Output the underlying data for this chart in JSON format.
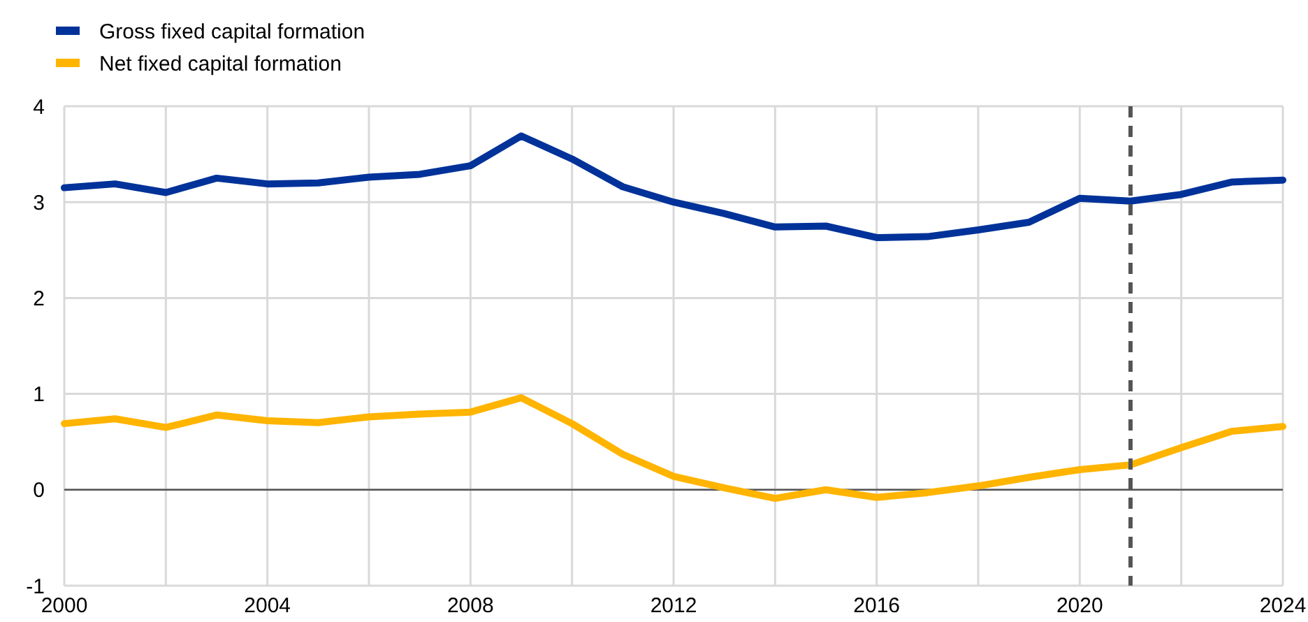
{
  "chart_data": {
    "type": "line",
    "x": [
      2000,
      2001,
      2002,
      2003,
      2004,
      2005,
      2006,
      2007,
      2008,
      2009,
      2010,
      2011,
      2012,
      2013,
      2014,
      2015,
      2016,
      2017,
      2018,
      2019,
      2020,
      2021,
      2022,
      2023,
      2024
    ],
    "series": [
      {
        "name": "Gross fixed capital formation",
        "color": "#003299",
        "values": [
          3.15,
          3.19,
          3.1,
          3.25,
          3.19,
          3.2,
          3.26,
          3.29,
          3.38,
          3.69,
          3.45,
          3.16,
          3.0,
          2.88,
          2.74,
          2.75,
          2.63,
          2.64,
          2.71,
          2.79,
          3.04,
          3.01,
          3.08,
          3.21,
          3.23
        ]
      },
      {
        "name": "Net fixed capital formation",
        "color": "#ffb400",
        "values": [
          0.69,
          0.74,
          0.65,
          0.78,
          0.72,
          0.7,
          0.76,
          0.79,
          0.81,
          0.96,
          0.69,
          0.37,
          0.14,
          0.02,
          -0.09,
          0.0,
          -0.08,
          -0.03,
          0.04,
          0.13,
          0.21,
          0.26,
          0.44,
          0.61,
          0.66
        ]
      }
    ],
    "xlim": [
      2000,
      2024
    ],
    "xticks": [
      2000,
      {
        "value": 2002,
        "label": null
      },
      2004,
      {
        "value": 2006,
        "label": null
      },
      2008,
      {
        "value": 2010,
        "label": null
      },
      2012,
      {
        "value": 2014,
        "label": null
      },
      2016,
      {
        "value": 2018,
        "label": null
      },
      2020,
      {
        "value": 2022,
        "label": null
      },
      2024
    ],
    "ylim": [
      -1,
      4
    ],
    "yticks": [
      -1,
      0,
      1,
      2,
      3,
      4
    ],
    "grid": true,
    "legend": "top left",
    "line_style": "solid",
    "marker": "none",
    "ref_lines": [
      {
        "axis": "y",
        "value": 0,
        "color": "#555555",
        "line_style": "solid"
      },
      {
        "axis": "x",
        "value": 2021,
        "color": "#555555",
        "line_style": "dashed"
      }
    ]
  }
}
